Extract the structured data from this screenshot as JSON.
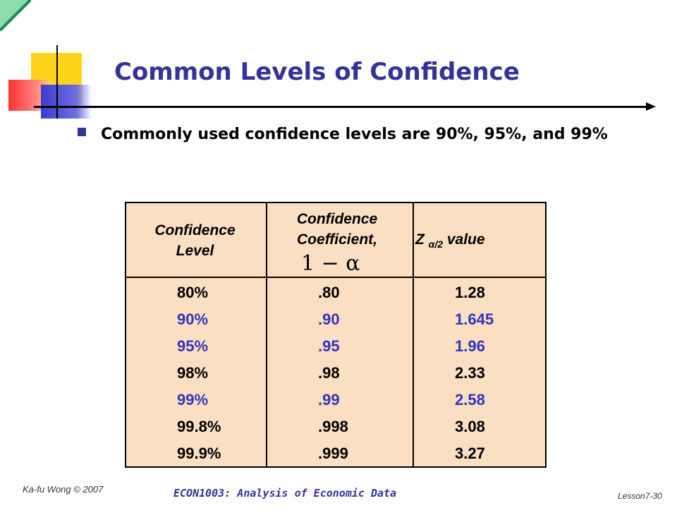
{
  "slide": {
    "title": "Common Levels of Confidence",
    "bullet": "Commonly used confidence levels are 90%, 95%, and 99%"
  },
  "table": {
    "header": {
      "col1": "Confidence Level",
      "col2": "Confidence Coefficient,",
      "col2_formula": "1 − α",
      "col3_z": "Z",
      "col3_sub": "α/2",
      "col3_rest": " value"
    },
    "rows": [
      {
        "level": "80%",
        "coef": ".80",
        "z": "1.28",
        "highlight": false
      },
      {
        "level": "90%",
        "coef": ".90",
        "z": "1.645",
        "highlight": true
      },
      {
        "level": "95%",
        "coef": ".95",
        "z": "1.96",
        "highlight": true
      },
      {
        "level": "98%",
        "coef": ".98",
        "z": "2.33",
        "highlight": false
      },
      {
        "level": "99%",
        "coef": ".99",
        "z": "2.58",
        "highlight": true
      },
      {
        "level": "99.8%",
        "coef": ".998",
        "z": "3.08",
        "highlight": false
      },
      {
        "level": "99.9%",
        "coef": ".999",
        "z": "3.27",
        "highlight": false
      }
    ]
  },
  "footer": {
    "author": "Ka-fu Wong © 2007",
    "course": "ECON1003: Analysis of Economic Data",
    "page": "Lesson7-30"
  },
  "colors": {
    "title": "#333399",
    "highlight_text": "#3333bb",
    "table_bg": "#fbdfc3"
  }
}
